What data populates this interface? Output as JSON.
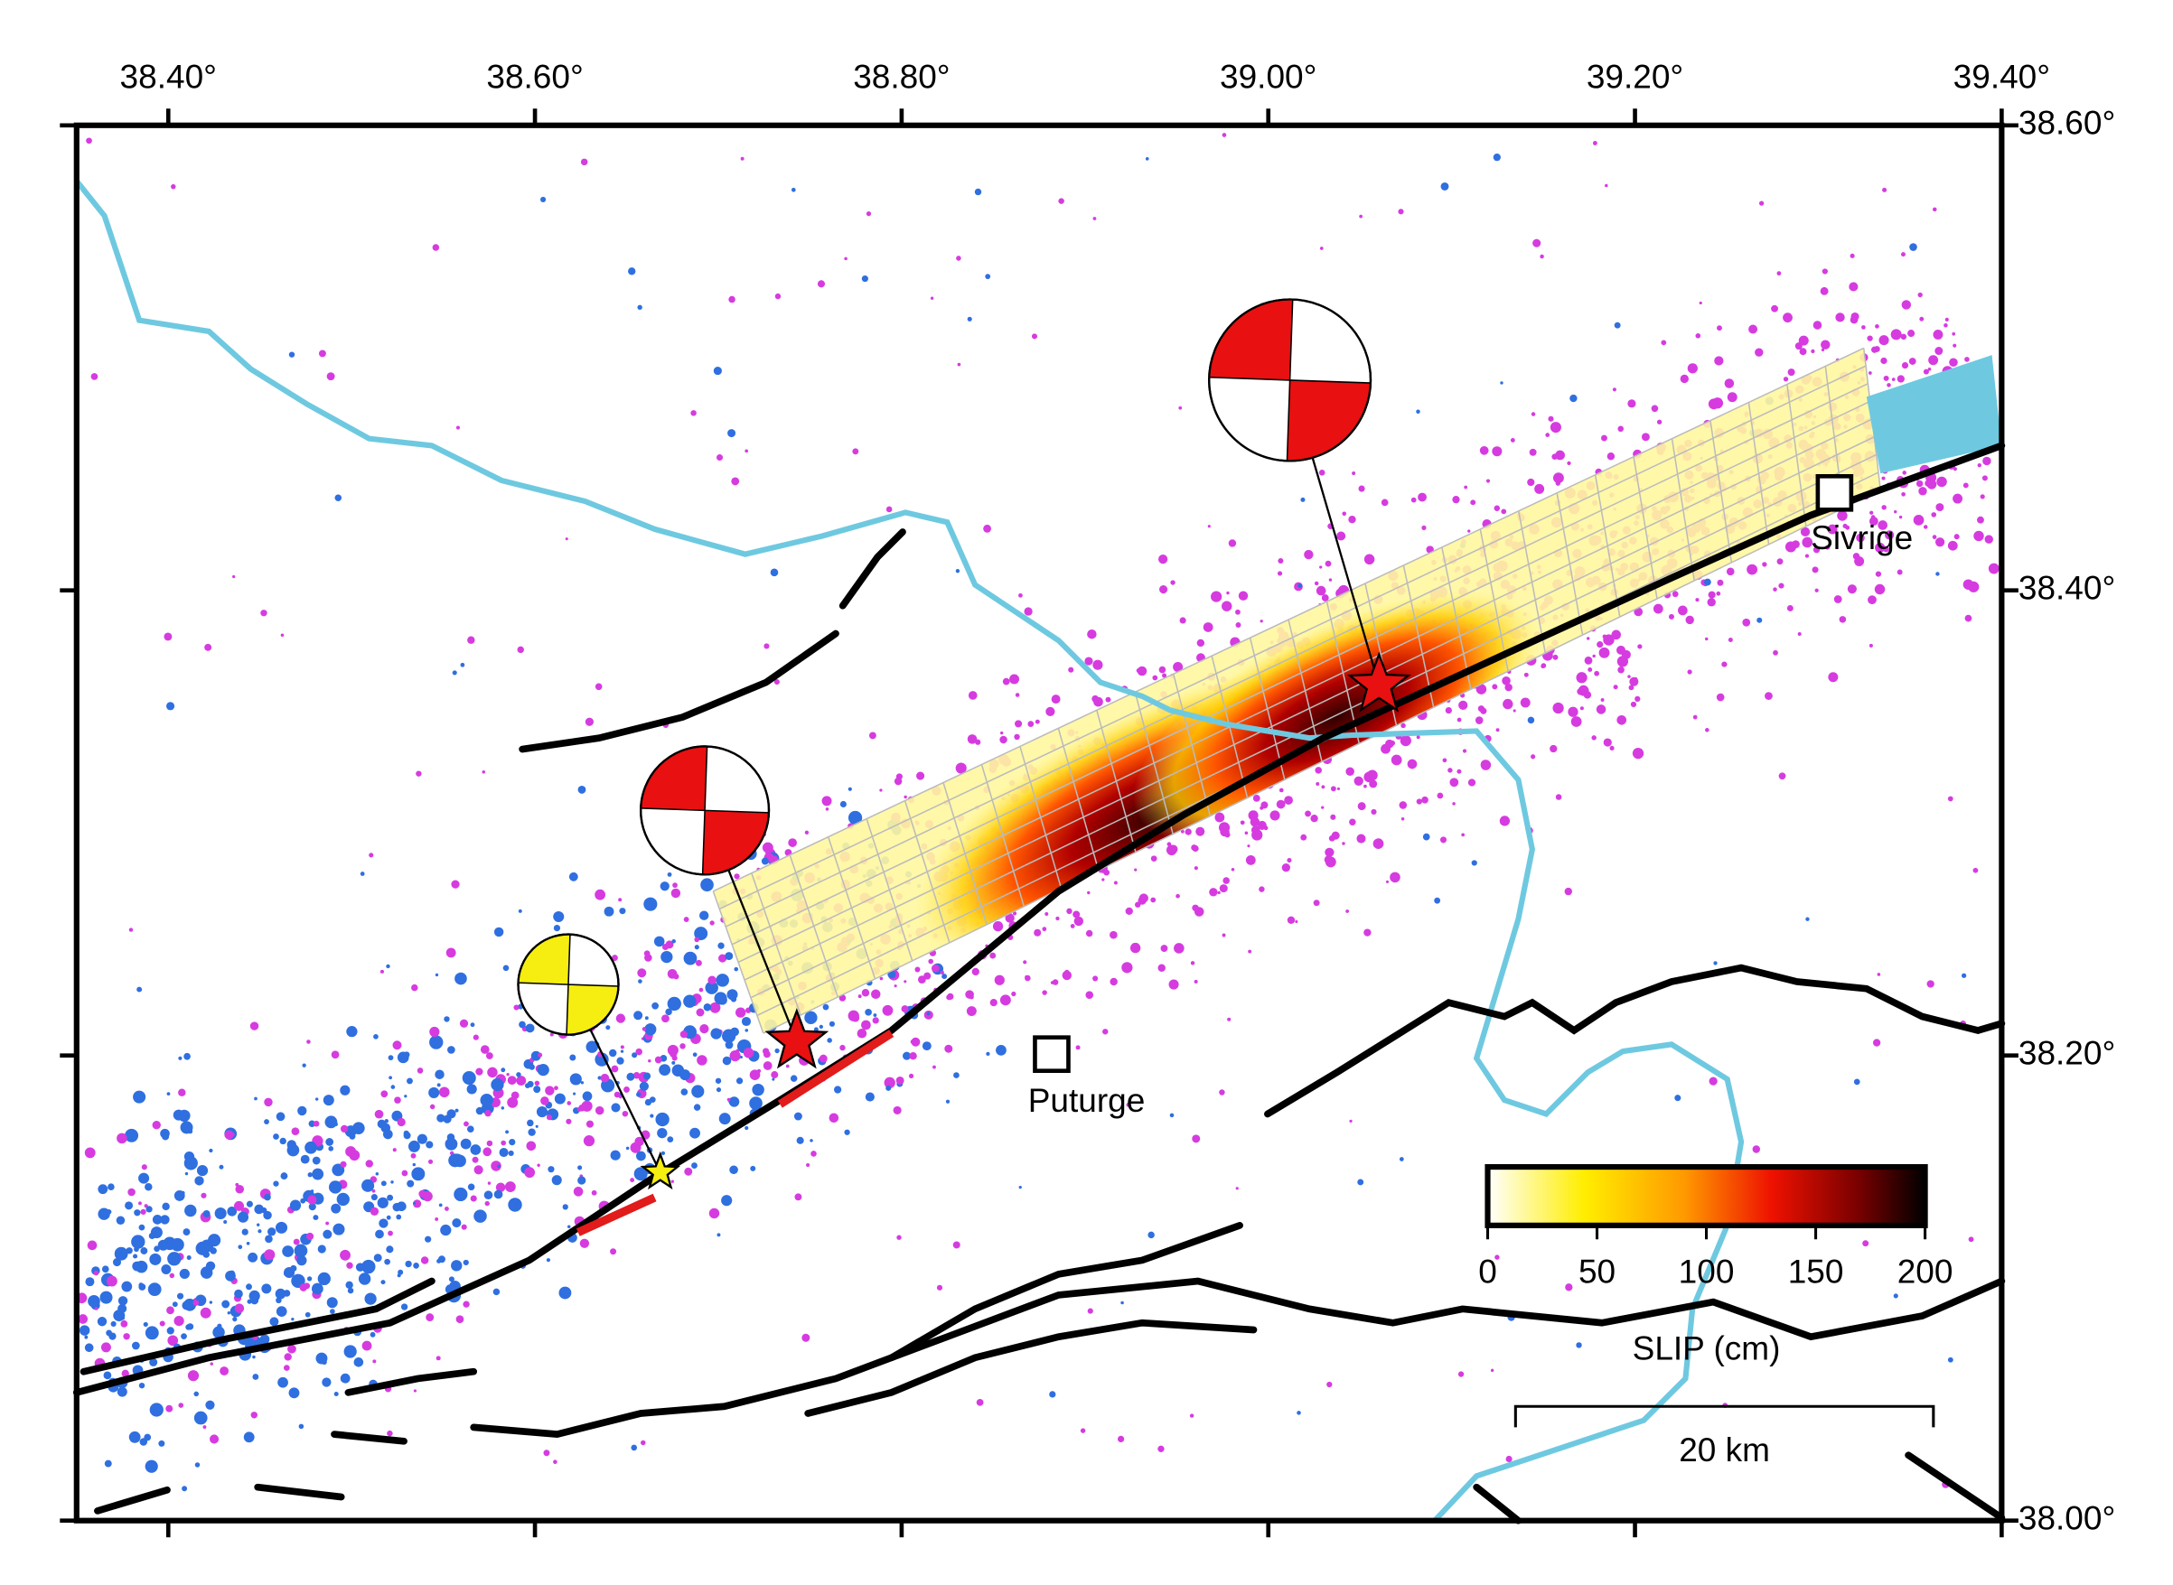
{
  "map": {
    "xlim": [
      38.35,
      39.4
    ],
    "ylim": [
      38.0,
      38.6
    ],
    "xticks": [
      {
        "value": 38.4,
        "label": "38.40°"
      },
      {
        "value": 38.6,
        "label": "38.60°"
      },
      {
        "value": 38.8,
        "label": "38.80°"
      },
      {
        "value": 39.0,
        "label": "39.00°"
      },
      {
        "value": 39.2,
        "label": "39.20°"
      },
      {
        "value": 39.4,
        "label": "39.40°"
      }
    ],
    "yticks": [
      {
        "value": 38.0,
        "label": "38.00°"
      },
      {
        "value": 38.2,
        "label": "38.20°"
      },
      {
        "value": 38.4,
        "label": "38.40°"
      },
      {
        "value": 38.6,
        "label": "38.60°"
      }
    ],
    "places": [
      {
        "name": "Sivrige"
      },
      {
        "name": "Puturge"
      }
    ],
    "colorbar": {
      "label": "SLIP (cm)",
      "range": [
        0,
        200
      ],
      "ticks": [
        0,
        50,
        100,
        150,
        200
      ]
    },
    "scale_bar": "20 km"
  }
}
